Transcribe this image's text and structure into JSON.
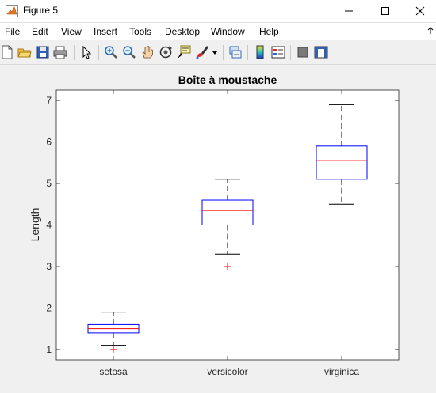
{
  "window": {
    "title": "Figure 5",
    "app_icon": "matlab-icon",
    "controls": [
      "minimize-icon",
      "maximize-icon",
      "close-icon"
    ]
  },
  "menu": {
    "items": [
      "File",
      "Edit",
      "View",
      "Insert",
      "Tools",
      "Desktop",
      "Window",
      "Help"
    ]
  },
  "toolbar": {
    "buttons": [
      "new-figure-icon",
      "open-file-icon",
      "save-icon",
      "print-icon",
      "select-arrow-icon",
      "zoom-in-icon",
      "zoom-out-icon",
      "pan-hand-icon",
      "rotate-3d-icon",
      "data-cursor-icon",
      "brush-icon",
      "brush-dropdown-icon",
      "link-plot-icon",
      "insert-colorbar-icon",
      "insert-legend-icon",
      "hide-plot-tools-icon",
      "show-plot-tools-icon"
    ]
  },
  "colors": {
    "box": "#0000ff",
    "median": "#ff0000",
    "outlier": "#ff0000",
    "whisker": "#000000"
  },
  "chart_data": {
    "type": "boxplot",
    "title": "Boîte à moustache",
    "ylabel": "Length",
    "xlabel": "",
    "categories": [
      "setosa",
      "versicolor",
      "virginica"
    ],
    "ylim": [
      0.75,
      7.25
    ],
    "yticks": [
      1,
      2,
      3,
      4,
      5,
      6,
      7
    ],
    "grid": false,
    "series": [
      {
        "category": "setosa",
        "min": 1.1,
        "q1": 1.4,
        "median": 1.5,
        "q3": 1.6,
        "max": 1.9,
        "outliers": [
          1.0
        ]
      },
      {
        "category": "versicolor",
        "min": 3.3,
        "q1": 4.0,
        "median": 4.35,
        "q3": 4.6,
        "max": 5.1,
        "outliers": [
          3.0
        ]
      },
      {
        "category": "virginica",
        "min": 4.5,
        "q1": 5.1,
        "median": 5.55,
        "q3": 5.9,
        "max": 6.9,
        "outliers": []
      }
    ]
  }
}
